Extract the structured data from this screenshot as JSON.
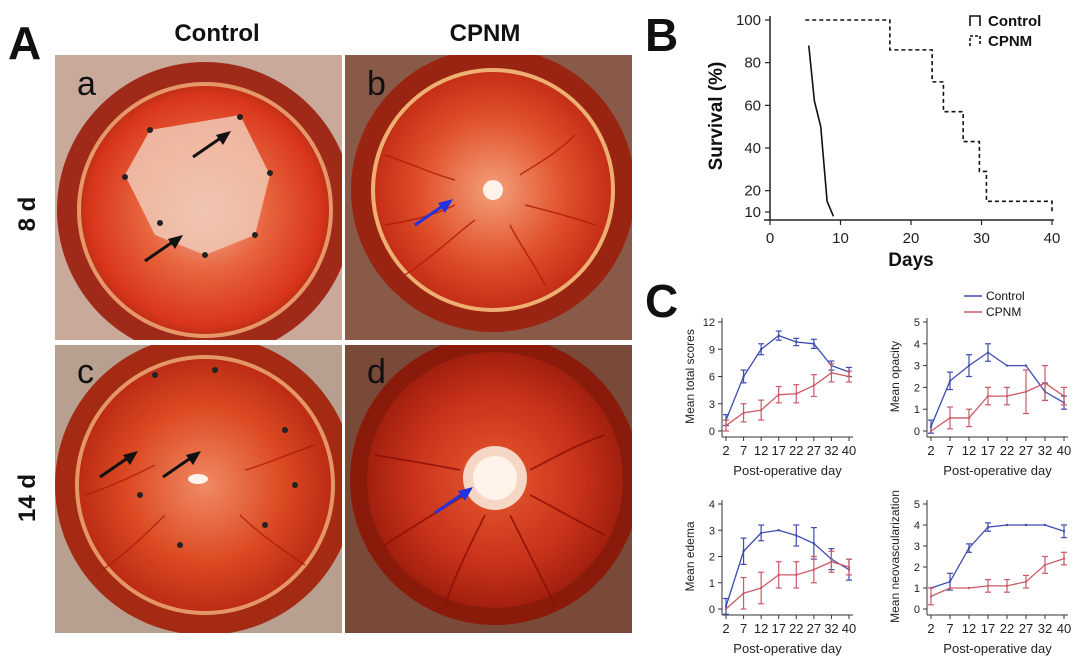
{
  "panel_a": {
    "letter": "A",
    "col_control": "Control",
    "col_cpnm": "CPNM",
    "row_8d": "8 d",
    "row_14d": "14 d",
    "subpanels": [
      "a",
      "b",
      "c",
      "d"
    ]
  },
  "panel_b": {
    "letter": "B"
  },
  "panel_c": {
    "letter": "C"
  },
  "colors": {
    "control": "#3d4cae",
    "cpnm": "#cc5a66",
    "black_arrow": "#111111",
    "blue_arrow": "#2233dd"
  },
  "chart_data": [
    {
      "id": "survival",
      "type": "line",
      "xlabel": "Days",
      "ylabel": "Survival (%)",
      "xlim": [
        0,
        40
      ],
      "ylim": [
        10,
        100
      ],
      "xticks": [
        "0",
        "10",
        "20",
        "30",
        "40"
      ],
      "yticks": [
        "10",
        "20",
        "40",
        "60",
        "80",
        "100"
      ],
      "legend_position": "top-right",
      "series": [
        {
          "name": "Control",
          "style": "solid",
          "x": [
            5.5,
            5.5,
            6.3,
            6.3,
            7.2,
            7.2,
            8.1,
            8.1,
            9.0,
            9.0
          ],
          "y": [
            88,
            88,
            62,
            62,
            50,
            50,
            15,
            15,
            8,
            8
          ]
        },
        {
          "name": "CPNM",
          "style": "dashed",
          "x": [
            5,
            17,
            17,
            23,
            23,
            24.6,
            24.6,
            27.4,
            27.4,
            29.7,
            29.7,
            30.7,
            30.7,
            40,
            40
          ],
          "y": [
            100,
            100,
            86,
            86,
            71,
            71,
            57,
            57,
            43,
            43,
            29,
            29,
            15,
            15,
            10
          ]
        }
      ]
    },
    {
      "id": "total_scores",
      "type": "line",
      "ylabel": "Mean total scores",
      "xlabel": "Post-operative day",
      "x": [
        2,
        7,
        12,
        17,
        22,
        27,
        32,
        40
      ],
      "ylim": [
        0,
        12
      ],
      "yticks": [
        "0",
        "3",
        "6",
        "9",
        "12"
      ],
      "series": [
        {
          "name": "Control",
          "values": [
            1.2,
            6.0,
            9.0,
            10.5,
            9.8,
            9.6,
            7.2,
            6.5
          ],
          "err": [
            0.6,
            0.7,
            0.6,
            0.5,
            0.4,
            0.5,
            0.5,
            0.5
          ]
        },
        {
          "name": "CPNM",
          "values": [
            0.6,
            2.0,
            2.3,
            4.0,
            4.1,
            5.0,
            6.4,
            6.0
          ],
          "err": [
            0.6,
            1.0,
            1.1,
            0.9,
            1.0,
            1.2,
            1.0,
            0.6
          ]
        }
      ]
    },
    {
      "id": "opacity",
      "type": "line",
      "ylabel": "Mean opacity",
      "xlabel": "Post-operative day",
      "x": [
        2,
        7,
        12,
        17,
        22,
        27,
        32,
        40
      ],
      "ylim": [
        0,
        5
      ],
      "yticks": [
        "0",
        "1",
        "2",
        "3",
        "4",
        "5"
      ],
      "series": [
        {
          "name": "Control",
          "values": [
            0.2,
            2.3,
            3.0,
            3.6,
            3.0,
            3.0,
            1.8,
            1.3
          ],
          "err": [
            0.3,
            0.4,
            0.5,
            0.4,
            0.0,
            0.0,
            0.4,
            0.3
          ]
        },
        {
          "name": "CPNM",
          "values": [
            0.0,
            0.6,
            0.6,
            1.6,
            1.6,
            1.8,
            2.2,
            1.6
          ],
          "err": [
            0.0,
            0.5,
            0.4,
            0.4,
            0.4,
            1.0,
            0.8,
            0.4
          ]
        }
      ]
    },
    {
      "id": "edema",
      "type": "line",
      "ylabel": "Mean edema",
      "xlabel": "Post-operative day",
      "x": [
        2,
        7,
        12,
        17,
        22,
        27,
        32,
        40
      ],
      "ylim": [
        0,
        4
      ],
      "yticks": [
        "0",
        "1",
        "2",
        "3",
        "4"
      ],
      "series": [
        {
          "name": "Control",
          "values": [
            0.1,
            2.2,
            2.9,
            3.0,
            2.8,
            2.5,
            1.9,
            1.5
          ],
          "err": [
            0.3,
            0.5,
            0.3,
            0.0,
            0.4,
            0.6,
            0.4,
            0.4
          ]
        },
        {
          "name": "CPNM",
          "values": [
            0.0,
            0.6,
            0.8,
            1.3,
            1.3,
            1.5,
            1.8,
            1.6
          ],
          "err": [
            0.0,
            0.6,
            0.6,
            0.5,
            0.5,
            0.5,
            0.4,
            0.3
          ]
        }
      ]
    },
    {
      "id": "neovascularization",
      "type": "line",
      "ylabel": "Mean neovascularization",
      "xlabel": "Post-operative day",
      "x": [
        2,
        7,
        12,
        17,
        22,
        27,
        32,
        40
      ],
      "ylim": [
        0,
        5
      ],
      "yticks": [
        "0",
        "1",
        "2",
        "3",
        "4",
        "5"
      ],
      "series": [
        {
          "name": "Control",
          "values": [
            1.0,
            1.3,
            2.9,
            3.9,
            4.0,
            4.0,
            4.0,
            3.7
          ],
          "err": [
            0.0,
            0.4,
            0.2,
            0.2,
            0.0,
            0.0,
            0.0,
            0.3
          ]
        },
        {
          "name": "CPNM",
          "values": [
            0.6,
            1.0,
            1.0,
            1.1,
            1.1,
            1.3,
            2.1,
            2.4
          ],
          "err": [
            0.4,
            0.0,
            0.0,
            0.3,
            0.3,
            0.3,
            0.4,
            0.3
          ]
        }
      ]
    }
  ],
  "legend_c": {
    "control": "Control",
    "cpnm": "CPNM"
  }
}
